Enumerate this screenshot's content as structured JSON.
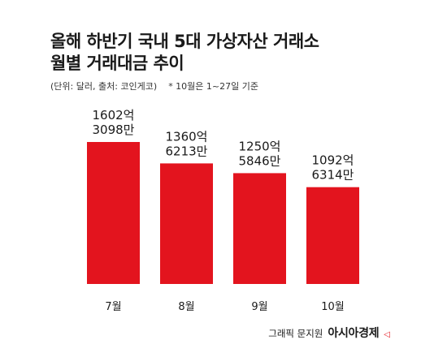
{
  "header": {
    "title_line1": "올해 하반기 국내 5대 가상자산 거래소",
    "title_line2": "월별 거래대금 추이",
    "unit_source": "(단위: 달러, 출처: 코인게코)",
    "note": "* 10월은 1~27일 기준"
  },
  "footer": {
    "credit": "그래픽 문지원",
    "brand": "아시아경제",
    "brand_mark": "◁"
  },
  "colors": {
    "bar": "#e3141e",
    "text": "#1a1a1a"
  },
  "chart_data": {
    "type": "bar",
    "categories": [
      "7월",
      "8월",
      "9월",
      "10월"
    ],
    "values": [
      160230980000,
      136062130000,
      125058460000,
      109263140000
    ],
    "data_labels": [
      [
        "1602억",
        "3098만"
      ],
      [
        "1360억",
        "6213만"
      ],
      [
        "1250억",
        "5846만"
      ],
      [
        "1092억",
        "6314만"
      ]
    ],
    "title": "",
    "xlabel": "",
    "ylabel": "",
    "ylim": [
      0,
      160230980000
    ]
  }
}
